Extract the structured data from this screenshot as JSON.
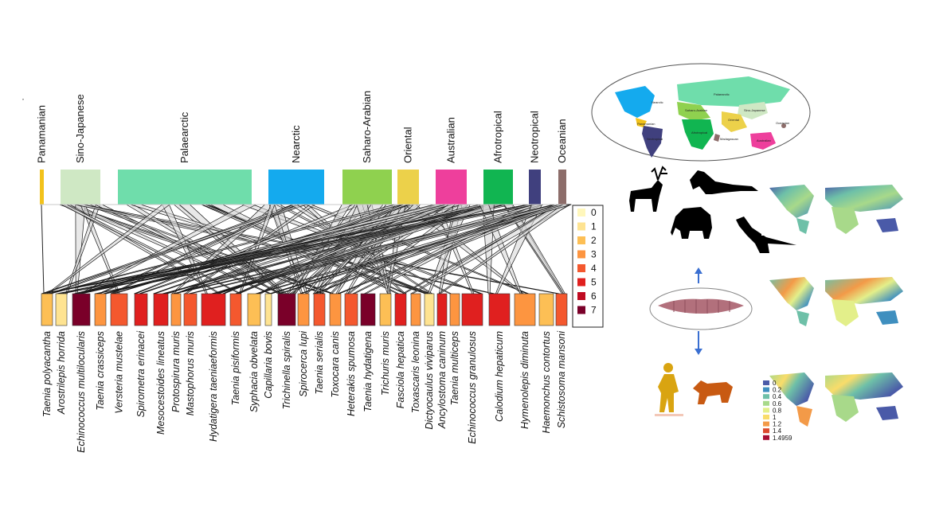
{
  "regions": [
    {
      "name": "Panamanian",
      "color": "#f2c21b"
    },
    {
      "name": "Sino-Japanese",
      "color": "#cfe8c4"
    },
    {
      "name": "Palaearctic",
      "color": "#6fddab"
    },
    {
      "name": "Nearctic",
      "color": "#14aaee"
    },
    {
      "name": "Saharo-Arabian",
      "color": "#8fd14f"
    },
    {
      "name": "Oriental",
      "color": "#ecd14a"
    },
    {
      "name": "Australian",
      "color": "#ee3f9c"
    },
    {
      "name": "Afrotropical",
      "color": "#11b551"
    },
    {
      "name": "Neotropical",
      "color": "#40407e"
    },
    {
      "name": "Oceanian",
      "color": "#8d6d6a"
    }
  ],
  "parasites": [
    {
      "name": "Taenia polyacantha",
      "level": 2
    },
    {
      "name": "Arostrilepis horrida",
      "level": 1
    },
    {
      "name": "Echinococcus multilocularis",
      "level": 7
    },
    {
      "name": "Taenia crassiceps",
      "level": 3
    },
    {
      "name": "Versteria mustelae",
      "level": 4
    },
    {
      "name": "Spirometra erinacei",
      "level": 5
    },
    {
      "name": "Mesocestoides lineatus",
      "level": 5
    },
    {
      "name": "Protospirura muris",
      "level": 3
    },
    {
      "name": "Mastophorus muris",
      "level": 4
    },
    {
      "name": "Hydatigera taeniaeformis",
      "level": 5
    },
    {
      "name": "Taenia pisiformis",
      "level": 4
    },
    {
      "name": "Syphacia obvelata",
      "level": 2
    },
    {
      "name": "Capillaria bovis",
      "level": 1
    },
    {
      "name": "Trichinella spiralis",
      "level": 7
    },
    {
      "name": "Spirocerca lupi",
      "level": 3
    },
    {
      "name": "Taenia serialis",
      "level": 4
    },
    {
      "name": "Toxocara canis",
      "level": 3
    },
    {
      "name": "Heterakis spumosa",
      "level": 4
    },
    {
      "name": "Taenia hydatigena",
      "level": 7
    },
    {
      "name": "Trichuris muris",
      "level": 2
    },
    {
      "name": "Fasciola hepatica",
      "level": 5
    },
    {
      "name": "Toxascaris leonina",
      "level": 3
    },
    {
      "name": "Dictyocaulus viviparus",
      "level": 1
    },
    {
      "name": "Ancylostoma caninum",
      "level": 5
    },
    {
      "name": "Taenia multiceps",
      "level": 3
    },
    {
      "name": "Echinococcus granulosus",
      "level": 5
    },
    {
      "name": "Calodium hepaticum",
      "level": 5
    },
    {
      "name": "Hymenolepis diminuta",
      "level": 3
    },
    {
      "name": "Haemonchus contortus",
      "level": 2
    },
    {
      "name": "Schistosoma mansoni",
      "level": 4
    }
  ],
  "legend": [
    {
      "label": "0",
      "color": "#fff7bc"
    },
    {
      "label": "1",
      "color": "#fee391"
    },
    {
      "label": "2",
      "color": "#fdbf55"
    },
    {
      "label": "3",
      "color": "#fd9540"
    },
    {
      "label": "4",
      "color": "#f4582e"
    },
    {
      "label": "5",
      "color": "#e0201f"
    },
    {
      "label": "6",
      "color": "#c00b22"
    },
    {
      "label": "7",
      "color": "#7a0029"
    }
  ],
  "map_regions": [
    "Nearctic",
    "Panamanian",
    "Neotropical",
    "Palaearctic",
    "Saharo-Arabian",
    "Sino-Japanese",
    "Afrotropical",
    "Oriental",
    "Madagascan",
    "Australian",
    "Oceanian"
  ],
  "risk_scale": {
    "labels": [
      "0",
      "0.2",
      "0.4",
      "0.6",
      "0.8",
      "1",
      "1.2",
      "1.4",
      "1.4959"
    ],
    "colors": [
      "#4a5aa8",
      "#3f8fbf",
      "#6ec0a8",
      "#a8d98a",
      "#e3ef8a",
      "#f9dc6a",
      "#f39a48",
      "#dc4a2e",
      "#a80f33"
    ]
  },
  "corner_mark": "·"
}
